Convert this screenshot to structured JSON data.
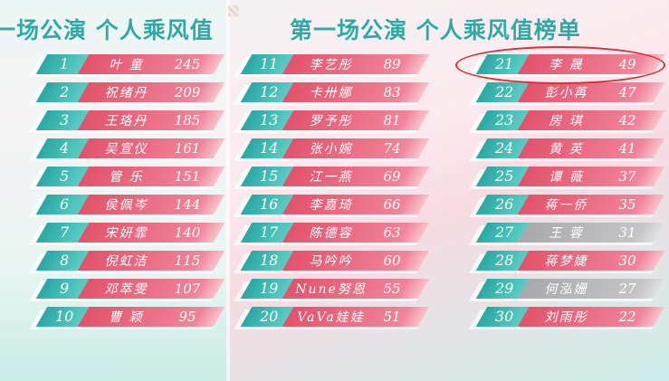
{
  "titles": {
    "left": "一场公演 个人乘风值",
    "right": "第一场公演 个人乘风值榜单"
  },
  "colors": {
    "teal": "#2aa8a3",
    "pink": "#e2536b",
    "gray": "#a9a9ad",
    "highlight_circle": "#d9303a"
  },
  "highlighted_rank": 21,
  "columns": [
    [
      {
        "rank": "1",
        "name": "叶 童",
        "score": "245"
      },
      {
        "rank": "2",
        "name": "祝绪丹",
        "score": "209"
      },
      {
        "rank": "3",
        "name": "王珞丹",
        "score": "185"
      },
      {
        "rank": "4",
        "name": "吴宣仪",
        "score": "161"
      },
      {
        "rank": "5",
        "name": "管 乐",
        "score": "151"
      },
      {
        "rank": "6",
        "name": "侯佩岑",
        "score": "144"
      },
      {
        "rank": "7",
        "name": "宋妍霏",
        "score": "140"
      },
      {
        "rank": "8",
        "name": "倪虹洁",
        "score": "115"
      },
      {
        "rank": "9",
        "name": "邓萃雯",
        "score": "107"
      },
      {
        "rank": "10",
        "name": "曹 颖",
        "score": "95"
      }
    ],
    [
      {
        "rank": "11",
        "name": "李艺彤",
        "score": "89"
      },
      {
        "rank": "12",
        "name": "卡卅娜",
        "score": "83"
      },
      {
        "rank": "13",
        "name": "罗予彤",
        "score": "81"
      },
      {
        "rank": "14",
        "name": "张小婉",
        "score": "74"
      },
      {
        "rank": "15",
        "name": "江一燕",
        "score": "69"
      },
      {
        "rank": "16",
        "name": "李嘉琦",
        "score": "66"
      },
      {
        "rank": "17",
        "name": "陈德容",
        "score": "63"
      },
      {
        "rank": "18",
        "name": "马吟吟",
        "score": "60"
      },
      {
        "rank": "19",
        "name": "Nune努恩",
        "score": "55"
      },
      {
        "rank": "20",
        "name": "VaVa娃娃",
        "score": "51"
      }
    ],
    [
      {
        "rank": "21",
        "name": "李 晟",
        "score": "49"
      },
      {
        "rank": "22",
        "name": "彭小苒",
        "score": "47"
      },
      {
        "rank": "23",
        "name": "房 琪",
        "score": "42"
      },
      {
        "rank": "24",
        "name": "黄 英",
        "score": "41"
      },
      {
        "rank": "25",
        "name": "谭 薇",
        "score": "37"
      },
      {
        "rank": "26",
        "name": "蒋一侨",
        "score": "35"
      },
      {
        "rank": "27",
        "name": "王 蓉",
        "score": "31",
        "gray": true
      },
      {
        "rank": "28",
        "name": "蒋梦婕",
        "score": "30"
      },
      {
        "rank": "29",
        "name": "何泓姗",
        "score": "27",
        "gray": true
      },
      {
        "rank": "30",
        "name": "刘雨彤",
        "score": "22"
      }
    ]
  ]
}
